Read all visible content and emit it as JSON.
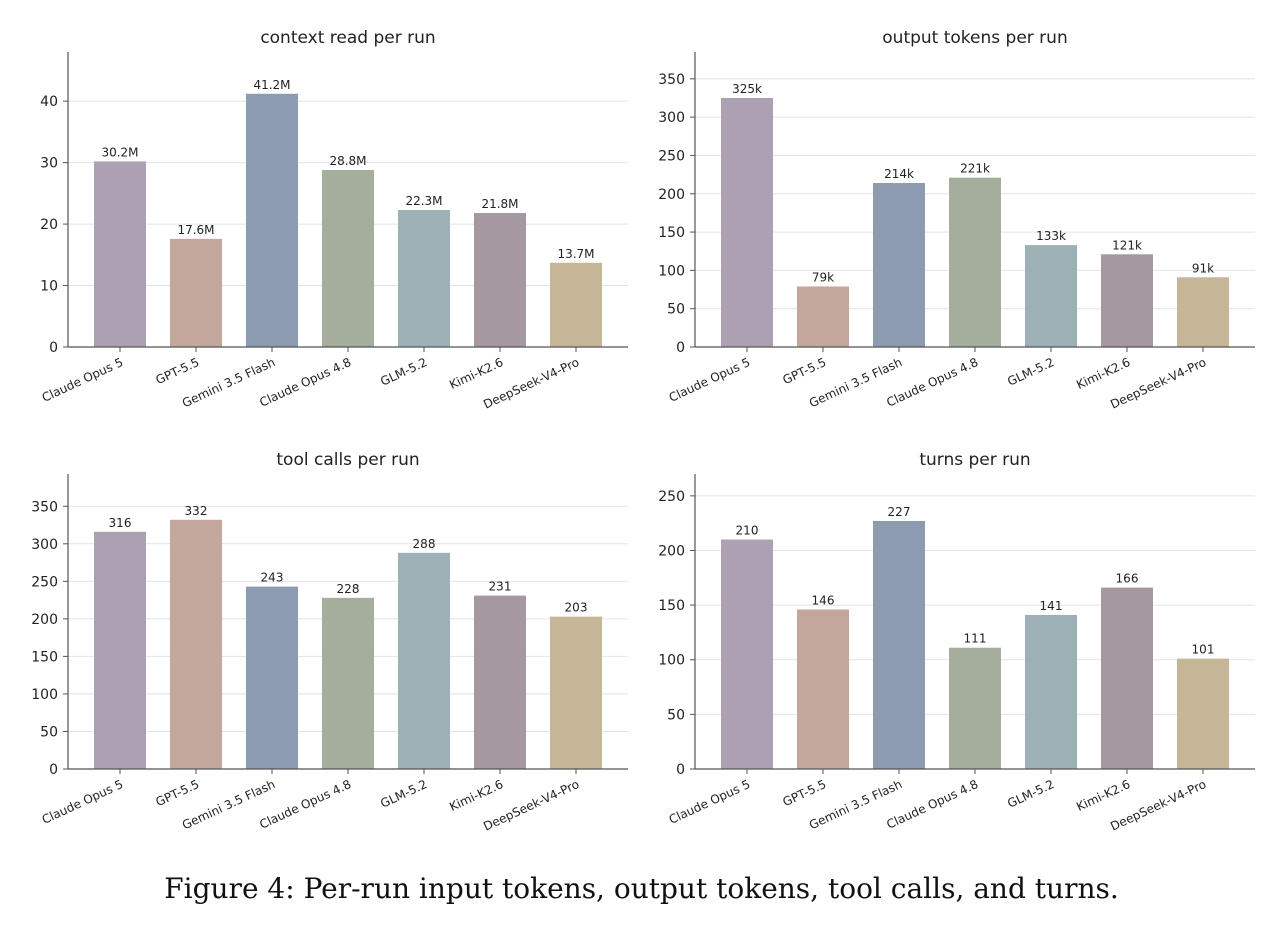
{
  "caption": "Figure 4: Per-run input tokens, output tokens, tool calls, and turns.",
  "colors": [
    "#ada0b3",
    "#c3a79d",
    "#8c9bb0",
    "#a5ae9c",
    "#9db0b5",
    "#a698a1",
    "#c6b698"
  ],
  "chart_data": [
    {
      "type": "bar",
      "title": "context read per run",
      "categories": [
        "Claude Opus 5",
        "GPT-5.5",
        "Gemini 3.5 Flash",
        "Claude Opus 4.8",
        "GLM-5.2",
        "Kimi-K2.6",
        "DeepSeek-V4-Pro"
      ],
      "values": [
        30.2,
        17.6,
        41.2,
        28.8,
        22.3,
        21.8,
        13.7
      ],
      "data_labels": [
        "30.2M",
        "17.6M",
        "41.2M",
        "28.8M",
        "22.3M",
        "21.8M",
        "13.7M"
      ],
      "ylim": [
        0,
        48
      ],
      "yticks": [
        0,
        10,
        20,
        30,
        40
      ],
      "xlabel": "",
      "ylabel": "",
      "grid": true
    },
    {
      "type": "bar",
      "title": "output tokens per run",
      "categories": [
        "Claude Opus 5",
        "GPT-5.5",
        "Gemini 3.5 Flash",
        "Claude Opus 4.8",
        "GLM-5.2",
        "Kimi-K2.6",
        "DeepSeek-V4-Pro"
      ],
      "values": [
        325,
        79,
        214,
        221,
        133,
        121,
        91
      ],
      "data_labels": [
        "325k",
        "79k",
        "214k",
        "221k",
        "133k",
        "121k",
        "91k"
      ],
      "ylim": [
        0,
        385
      ],
      "yticks": [
        0,
        50,
        100,
        150,
        200,
        250,
        300,
        350
      ],
      "xlabel": "",
      "ylabel": "",
      "grid": true
    },
    {
      "type": "bar",
      "title": "tool calls per run",
      "categories": [
        "Claude Opus 5",
        "GPT-5.5",
        "Gemini 3.5 Flash",
        "Claude Opus 4.8",
        "GLM-5.2",
        "Kimi-K2.6",
        "DeepSeek-V4-Pro"
      ],
      "values": [
        316,
        332,
        243,
        228,
        288,
        231,
        203
      ],
      "data_labels": [
        "316",
        "332",
        "243",
        "228",
        "288",
        "231",
        "203"
      ],
      "ylim": [
        0,
        393
      ],
      "yticks": [
        0,
        50,
        100,
        150,
        200,
        250,
        300,
        350
      ],
      "xlabel": "",
      "ylabel": "",
      "grid": true
    },
    {
      "type": "bar",
      "title": "turns per run",
      "categories": [
        "Claude Opus 5",
        "GPT-5.5",
        "Gemini 3.5 Flash",
        "Claude Opus 4.8",
        "GLM-5.2",
        "Kimi-K2.6",
        "DeepSeek-V4-Pro"
      ],
      "values": [
        210,
        146,
        227,
        111,
        141,
        166,
        101
      ],
      "data_labels": [
        "210",
        "146",
        "227",
        "111",
        "141",
        "166",
        "101"
      ],
      "ylim": [
        0,
        270
      ],
      "yticks": [
        0,
        50,
        100,
        150,
        200,
        250
      ],
      "xlabel": "",
      "ylabel": "",
      "grid": true
    }
  ]
}
